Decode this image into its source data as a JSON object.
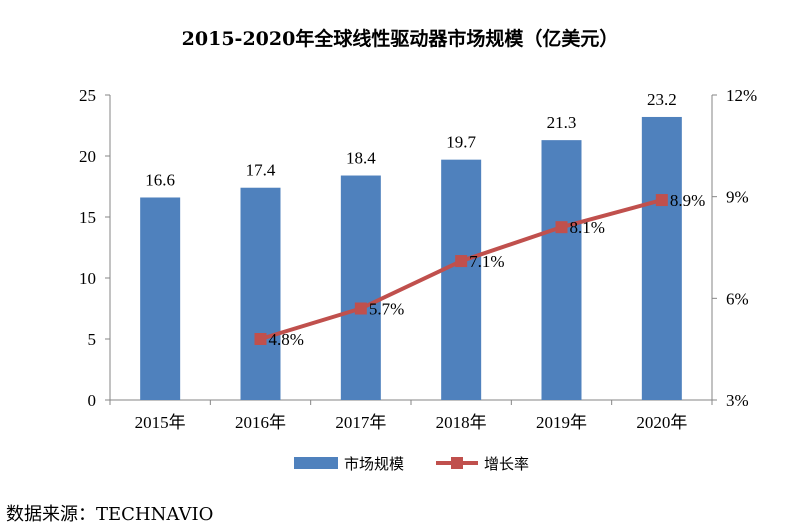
{
  "chart_data": {
    "type": "bar",
    "title": "2015-2020年全球线性驱动器市场规模（亿美元）",
    "categories": [
      "2015年",
      "2016年",
      "2017年",
      "2018年",
      "2019年",
      "2020年"
    ],
    "series": [
      {
        "name": "市场规模",
        "type": "bar",
        "axis": "left",
        "color": "#4f81bd",
        "values": [
          16.6,
          17.4,
          18.4,
          19.7,
          21.3,
          23.2
        ],
        "labels": [
          "16.6",
          "17.4",
          "18.4",
          "19.7",
          "21.3",
          "23.2"
        ]
      },
      {
        "name": "增长率",
        "type": "line",
        "axis": "right",
        "color": "#c0504d",
        "values": [
          null,
          4.8,
          5.7,
          7.1,
          8.1,
          8.9
        ],
        "labels": [
          "",
          "4.8%",
          "5.7%",
          "7.1%",
          "8.1%",
          "8.9%"
        ]
      }
    ],
    "y_left": {
      "min": 0,
      "max": 25,
      "ticks": [
        0,
        5,
        10,
        15,
        20,
        25
      ],
      "tick_labels": [
        "0",
        "5",
        "10",
        "15",
        "20",
        "25"
      ]
    },
    "y_right": {
      "min": 3,
      "max": 12,
      "ticks": [
        3,
        6,
        9,
        12
      ],
      "tick_labels": [
        "3%",
        "6%",
        "9%",
        "12%"
      ]
    },
    "grid": false,
    "legend_position": "bottom"
  },
  "source_text": "数据来源：TECHNAVIO"
}
